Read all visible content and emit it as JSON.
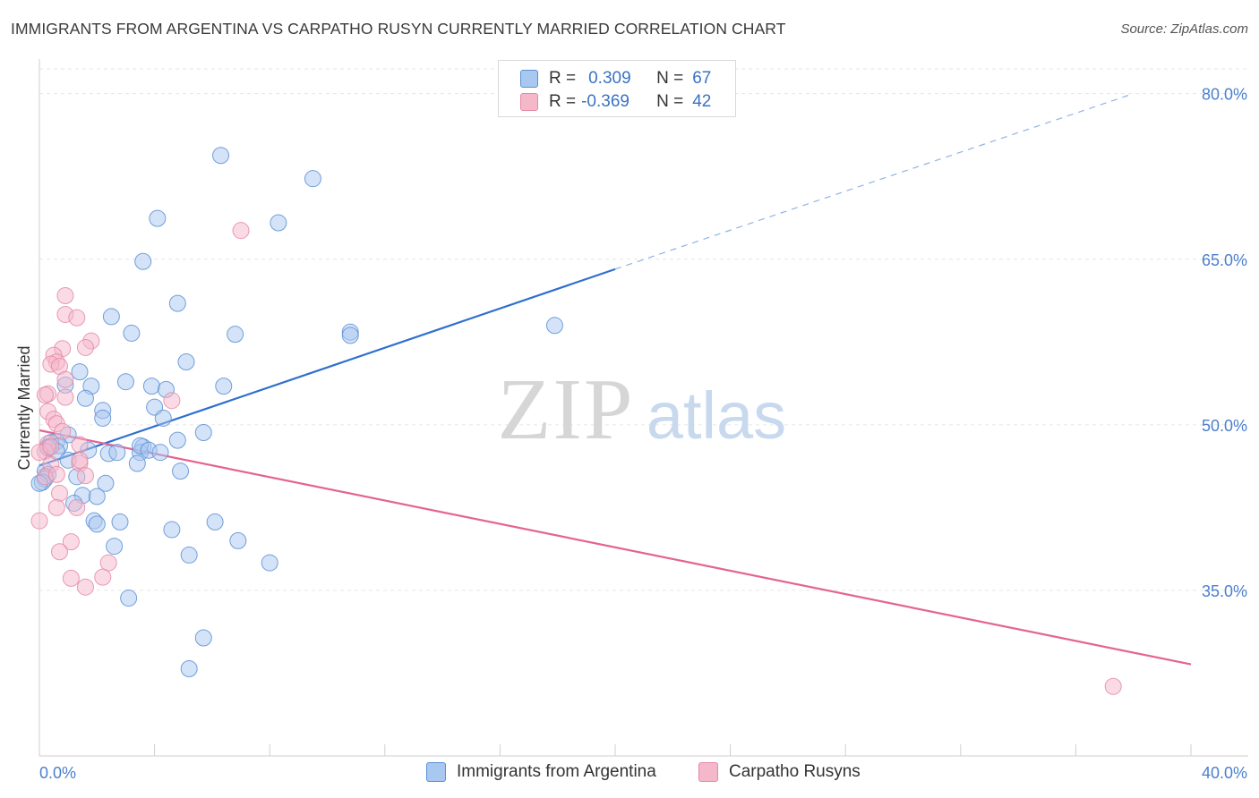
{
  "header": {
    "title": "IMMIGRANTS FROM ARGENTINA VS CARPATHO RUSYN CURRENTLY MARRIED CORRELATION CHART",
    "source": "Source: ZipAtlas.com"
  },
  "watermark": {
    "zip": "ZIP",
    "atlas": "atlas"
  },
  "legend": {
    "rows": [
      {
        "r_label": "R =",
        "r_value": "0.309",
        "n_label": "N =",
        "n_value": "67",
        "color": "#a9c8ef"
      },
      {
        "r_label": "R =",
        "r_value": "-0.369",
        "n_label": "N =",
        "n_value": "42",
        "color": "#f5b8cb"
      }
    ]
  },
  "bottom_legend": {
    "items": [
      {
        "label": "Immigrants from Argentina",
        "color": "#a9c8ef"
      },
      {
        "label": "Carpatho Rusyns",
        "color": "#f5b8cb"
      }
    ]
  },
  "chart_data": {
    "type": "scatter",
    "title": "IMMIGRANTS FROM ARGENTINA VS CARPATHO RUSYN CURRENTLY MARRIED CORRELATION CHART",
    "xlabel": "",
    "ylabel": "Currently Married",
    "xlim": [
      0,
      40
    ],
    "ylim": [
      20,
      82
    ],
    "x_ticks": [
      "0.0%",
      "40.0%"
    ],
    "y_ticks": [
      {
        "value": 35,
        "label": "35.0%"
      },
      {
        "value": 50,
        "label": "50.0%"
      },
      {
        "value": 65,
        "label": "65.0%"
      },
      {
        "value": 80,
        "label": "80.0%"
      }
    ],
    "grid": true,
    "series": [
      {
        "name": "Immigrants from Argentina",
        "color": "#5b8fd6",
        "fill": "#a9c8ef",
        "trend": {
          "x": [
            0,
            20,
            38
          ],
          "y": [
            46.3,
            64.1,
            80.0
          ],
          "solid_until": 20,
          "color": "#2f6fcf"
        },
        "points": [
          [
            6.3,
            74.4
          ],
          [
            9.5,
            72.3
          ],
          [
            4.1,
            68.7
          ],
          [
            8.3,
            68.3
          ],
          [
            3.6,
            64.8
          ],
          [
            4.8,
            61.0
          ],
          [
            2.5,
            59.8
          ],
          [
            3.2,
            58.3
          ],
          [
            6.8,
            58.2
          ],
          [
            10.8,
            58.4
          ],
          [
            10.8,
            58.1
          ],
          [
            17.9,
            59.0
          ],
          [
            5.1,
            55.7
          ],
          [
            1.4,
            54.8
          ],
          [
            0.9,
            53.6
          ],
          [
            1.8,
            53.5
          ],
          [
            3.0,
            53.9
          ],
          [
            3.9,
            53.5
          ],
          [
            4.4,
            53.2
          ],
          [
            6.4,
            53.5
          ],
          [
            1.6,
            52.4
          ],
          [
            2.2,
            51.3
          ],
          [
            4.0,
            51.6
          ],
          [
            2.2,
            50.6
          ],
          [
            4.3,
            50.6
          ],
          [
            5.7,
            49.3
          ],
          [
            1.0,
            49.1
          ],
          [
            0.6,
            48.5
          ],
          [
            0.4,
            48.4
          ],
          [
            0.3,
            48.0
          ],
          [
            0.7,
            48.1
          ],
          [
            0.6,
            47.6
          ],
          [
            1.7,
            47.7
          ],
          [
            2.4,
            47.4
          ],
          [
            2.7,
            47.5
          ],
          [
            3.6,
            48.0
          ],
          [
            3.5,
            47.5
          ],
          [
            3.5,
            48.1
          ],
          [
            3.8,
            47.7
          ],
          [
            4.2,
            47.5
          ],
          [
            4.8,
            48.6
          ],
          [
            1.0,
            46.8
          ],
          [
            3.4,
            46.5
          ],
          [
            0.2,
            45.8
          ],
          [
            0.3,
            45.5
          ],
          [
            0.2,
            45.1
          ],
          [
            1.3,
            45.3
          ],
          [
            4.9,
            45.8
          ],
          [
            2.3,
            44.7
          ],
          [
            0.1,
            44.8
          ],
          [
            0.0,
            44.7
          ],
          [
            1.5,
            43.6
          ],
          [
            2.0,
            43.5
          ],
          [
            1.2,
            42.9
          ],
          [
            1.9,
            41.3
          ],
          [
            2.0,
            41.0
          ],
          [
            2.8,
            41.2
          ],
          [
            6.1,
            41.2
          ],
          [
            4.6,
            40.5
          ],
          [
            2.6,
            39.0
          ],
          [
            6.9,
            39.5
          ],
          [
            5.2,
            38.2
          ],
          [
            8.0,
            37.5
          ],
          [
            3.1,
            34.3
          ],
          [
            5.7,
            30.7
          ],
          [
            5.2,
            27.9
          ],
          [
            0.3,
            47.9
          ]
        ]
      },
      {
        "name": "Carpatho Rusyns",
        "color": "#e489a6",
        "fill": "#f5b8cb",
        "trend": {
          "x": [
            0,
            40
          ],
          "y": [
            49.5,
            28.3
          ],
          "color": "#e4648f"
        },
        "points": [
          [
            7.0,
            67.6
          ],
          [
            0.9,
            61.7
          ],
          [
            0.9,
            60.0
          ],
          [
            1.3,
            59.7
          ],
          [
            1.8,
            57.6
          ],
          [
            1.6,
            57.0
          ],
          [
            0.8,
            56.9
          ],
          [
            0.5,
            56.3
          ],
          [
            0.6,
            55.7
          ],
          [
            0.4,
            55.5
          ],
          [
            0.7,
            55.3
          ],
          [
            0.9,
            54.1
          ],
          [
            0.3,
            52.8
          ],
          [
            0.2,
            52.7
          ],
          [
            0.9,
            52.5
          ],
          [
            4.6,
            52.2
          ],
          [
            0.3,
            51.2
          ],
          [
            0.5,
            50.5
          ],
          [
            0.6,
            50.1
          ],
          [
            0.8,
            49.4
          ],
          [
            1.4,
            48.2
          ],
          [
            0.3,
            48.3
          ],
          [
            0.2,
            47.6
          ],
          [
            0.4,
            46.4
          ],
          [
            1.4,
            46.5
          ],
          [
            0.2,
            45.3
          ],
          [
            0.6,
            45.5
          ],
          [
            1.6,
            45.4
          ],
          [
            0.7,
            43.8
          ],
          [
            0.6,
            42.5
          ],
          [
            1.3,
            42.5
          ],
          [
            0.0,
            41.3
          ],
          [
            1.1,
            39.4
          ],
          [
            0.7,
            38.5
          ],
          [
            2.4,
            37.5
          ],
          [
            1.1,
            36.1
          ],
          [
            2.2,
            36.2
          ],
          [
            1.6,
            35.3
          ],
          [
            37.3,
            26.3
          ],
          [
            0.0,
            47.5
          ],
          [
            1.4,
            46.8
          ],
          [
            0.4,
            48.0
          ]
        ]
      }
    ]
  }
}
